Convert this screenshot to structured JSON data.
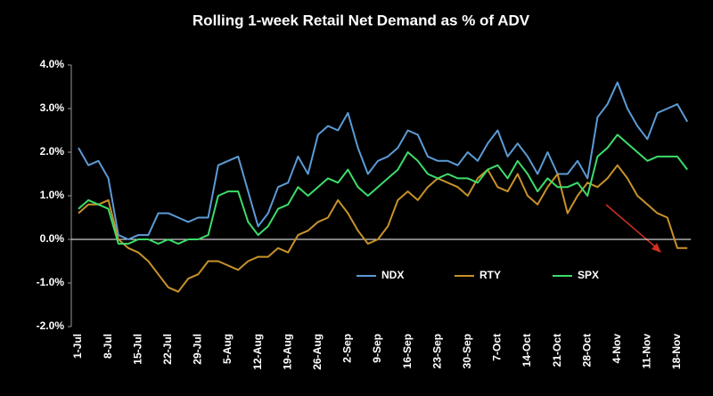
{
  "chart_data": {
    "type": "line",
    "title": "Rolling 1-week Retail Net Demand as %  of ADV",
    "categories": [
      "1-Jul",
      null,
      null,
      "8-Jul",
      null,
      null,
      "15-Jul",
      null,
      null,
      "22-Jul",
      null,
      null,
      "29-Jul",
      null,
      null,
      "5-Aug",
      null,
      null,
      "12-Aug",
      null,
      null,
      "19-Aug",
      null,
      null,
      "26-Aug",
      null,
      null,
      "2-Sep",
      null,
      null,
      "9-Sep",
      null,
      null,
      "16-Sep",
      null,
      null,
      "23-Sep",
      null,
      null,
      "30-Sep",
      null,
      null,
      "7-Oct",
      null,
      null,
      "14-Oct",
      null,
      null,
      "21-Oct",
      null,
      null,
      "28-Oct",
      null,
      null,
      "4-Nov",
      null,
      null,
      "11-Nov",
      null,
      null,
      "18-Nov",
      null
    ],
    "series": [
      {
        "name": "NDX",
        "color": "#5b9bd5",
        "values": [
          2.1,
          1.7,
          1.8,
          1.4,
          0.1,
          0.0,
          0.1,
          0.1,
          0.6,
          0.6,
          0.5,
          0.4,
          0.5,
          0.5,
          1.7,
          1.8,
          1.9,
          1.1,
          0.3,
          0.6,
          1.2,
          1.3,
          1.9,
          1.5,
          2.4,
          2.6,
          2.5,
          2.9,
          2.1,
          1.5,
          1.8,
          1.9,
          2.1,
          2.5,
          2.4,
          1.9,
          1.8,
          1.8,
          1.7,
          2.0,
          1.8,
          2.2,
          2.5,
          1.9,
          2.2,
          1.9,
          1.5,
          2.0,
          1.5,
          1.5,
          1.8,
          1.4,
          2.8,
          3.1,
          3.6,
          3.0,
          2.6,
          2.3,
          2.9,
          3.0,
          3.1,
          2.7
        ]
      },
      {
        "name": "RTY",
        "color": "#c8922a",
        "values": [
          0.6,
          0.8,
          0.8,
          0.9,
          0.0,
          -0.2,
          -0.3,
          -0.5,
          -0.8,
          -1.1,
          -1.2,
          -0.9,
          -0.8,
          -0.5,
          -0.5,
          -0.6,
          -0.7,
          -0.5,
          -0.4,
          -0.4,
          -0.2,
          -0.3,
          0.1,
          0.2,
          0.4,
          0.5,
          0.9,
          0.6,
          0.2,
          -0.1,
          0.0,
          0.3,
          0.9,
          1.1,
          0.9,
          1.2,
          1.4,
          1.3,
          1.2,
          1.0,
          1.4,
          1.6,
          1.2,
          1.1,
          1.5,
          1.0,
          0.8,
          1.2,
          1.5,
          0.6,
          1.0,
          1.3,
          1.2,
          1.4,
          1.7,
          1.4,
          1.0,
          0.8,
          0.6,
          0.5,
          -0.2,
          -0.2
        ]
      },
      {
        "name": "SPX",
        "color": "#3ddc6a",
        "values": [
          0.7,
          0.9,
          0.8,
          0.7,
          -0.1,
          -0.1,
          0.0,
          0.0,
          -0.1,
          0.0,
          -0.1,
          0.0,
          0.0,
          0.1,
          1.0,
          1.1,
          1.1,
          0.4,
          0.1,
          0.3,
          0.7,
          0.8,
          1.2,
          1.0,
          1.2,
          1.4,
          1.3,
          1.6,
          1.2,
          1.0,
          1.2,
          1.4,
          1.6,
          2.0,
          1.8,
          1.5,
          1.4,
          1.5,
          1.4,
          1.4,
          1.3,
          1.6,
          1.7,
          1.4,
          1.8,
          1.5,
          1.1,
          1.4,
          1.2,
          1.2,
          1.3,
          1.0,
          1.9,
          2.1,
          2.4,
          2.2,
          2.0,
          1.8,
          1.9,
          1.9,
          1.9,
          1.6
        ]
      }
    ],
    "ylim": [
      -2,
      4
    ],
    "yticks": [
      {
        "value": -2,
        "label": "-2.0%"
      },
      {
        "value": -1,
        "label": "-1.0%"
      },
      {
        "value": 0,
        "label": "0.0%"
      },
      {
        "value": 1,
        "label": "1.0%"
      },
      {
        "value": 2,
        "label": "2.0%"
      },
      {
        "value": 3,
        "label": "3.0%"
      },
      {
        "value": 4,
        "label": "4.0%"
      }
    ],
    "grid": false,
    "legend": "bottom-right"
  }
}
